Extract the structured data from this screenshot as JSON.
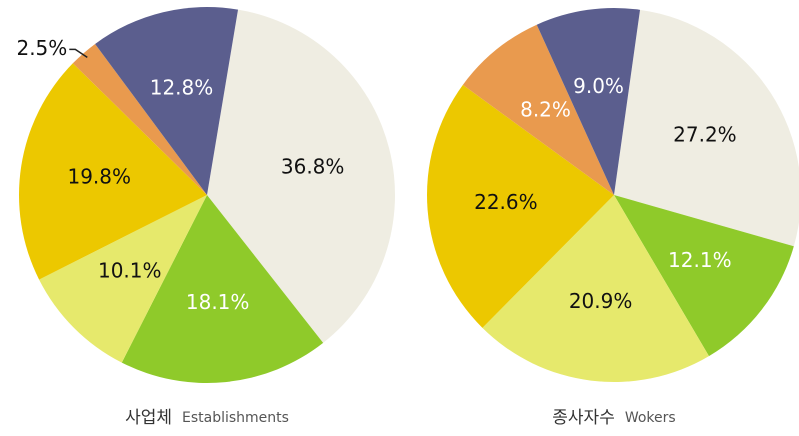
{
  "chart_data": [
    {
      "type": "pie",
      "title": "사업체",
      "subtitle": "Establishments",
      "categories": [
        null,
        null,
        null,
        null,
        null,
        null
      ],
      "values": [
        36.8,
        18.1,
        10.1,
        19.8,
        2.5,
        12.8
      ],
      "value_labels": [
        "36.8%",
        "18.1%",
        "10.1%",
        "19.8%",
        "2.5%",
        "12.8%"
      ],
      "colors": [
        "#efede2",
        "#8fca2a",
        "#e6e96c",
        "#ecc800",
        "#e99a4e",
        "#5b5e8e"
      ]
    },
    {
      "type": "pie",
      "title": "종사자수",
      "subtitle": "Wokers",
      "categories": [
        null,
        null,
        null,
        null,
        null,
        null
      ],
      "values": [
        27.2,
        12.1,
        20.9,
        22.6,
        8.2,
        9.0
      ],
      "value_labels": [
        "27.2%",
        "12.1%",
        "20.9%",
        "22.6%",
        "8.2%",
        "9.0%"
      ],
      "colors": [
        "#efede2",
        "#8fca2a",
        "#e6e96c",
        "#ecc800",
        "#e99a4e",
        "#5b5e8e"
      ]
    }
  ]
}
